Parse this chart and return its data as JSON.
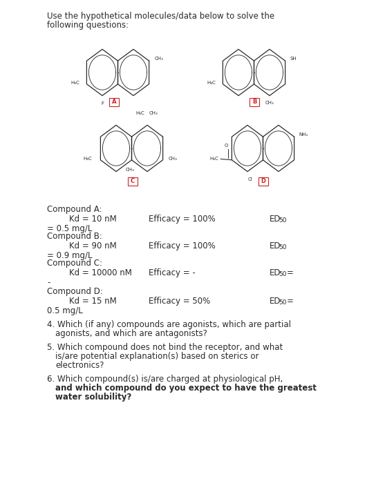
{
  "title_line1": "Use the hypothetical molecules/data below to solve the",
  "title_line2": "following questions:",
  "bg_color": "#ffffff",
  "text_color": "#2a2a2a",
  "box_color": "#cc2222",
  "mol_color": "#2a2a2a",
  "compound_data": [
    {
      "label": "Compound A:",
      "kd": "Kd = 10 nM",
      "efficacy": "Efficacy = 100%",
      "ed": "ED",
      "ed_sub": "50",
      "ed_val": "",
      "line2": "= 0.5 mg/L"
    },
    {
      "label": "Compound B:",
      "kd": "Kd = 90 nM",
      "efficacy": "Efficacy = 100%",
      "ed": "ED",
      "ed_sub": "50",
      "ed_val": "",
      "line2": "= 0.9 mg/L"
    },
    {
      "label": "Compound C:",
      "kd": "Kd = 10000 nM",
      "efficacy": "Efficacy = -",
      "ed": "ED",
      "ed_sub": "50",
      "ed_val": "=",
      "line2": "-"
    },
    {
      "label": "Compound D:",
      "kd": "Kd = 15 nM",
      "efficacy": "Efficacy = 50%",
      "ed": "ED",
      "ed_sub": "50",
      "ed_val": "=",
      "line2": "0.5 mg/L"
    }
  ],
  "questions": [
    {
      "num": "4.",
      "text": "Which (if any) compounds are agonists, which are partial",
      "cont": "agonists, and which are antagonists?"
    },
    {
      "num": "5.",
      "text": "Which compound does not bind the receptor, and what",
      "cont": "is/are potential explanation(s) based on sterics or",
      "cont2": "electronics?"
    },
    {
      "num": "6.",
      "text": "Which compound(s) is/are charged at physiological pH,",
      "cont": "and which compound do you expect to have the greatest",
      "cont2": "water solubility?"
    }
  ]
}
